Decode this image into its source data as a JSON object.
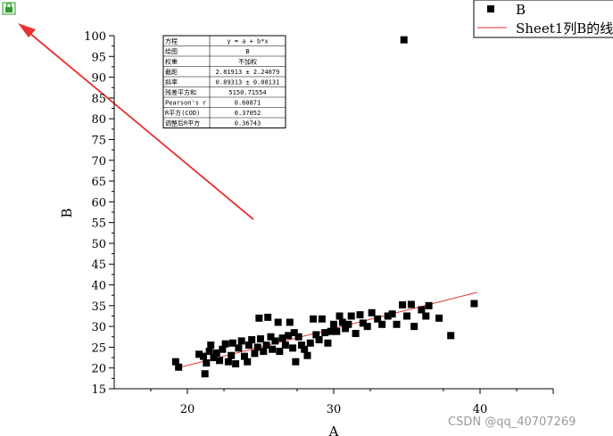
{
  "chart_data": {
    "type": "scatter",
    "xlabel": "A",
    "ylabel": "B",
    "xlim": [
      15,
      45
    ],
    "ylim": [
      15,
      100
    ],
    "x_ticks": [
      20,
      30,
      40
    ],
    "y_ticks": [
      15,
      20,
      25,
      30,
      35,
      40,
      45,
      50,
      55,
      60,
      65,
      70,
      75,
      80,
      85,
      90,
      95,
      100
    ],
    "grid": false,
    "legend": {
      "position": "top-right",
      "entries": [
        {
          "label": "B",
          "marker": "square"
        },
        {
          "label": "Sheet1列B的线",
          "marker": "line"
        }
      ]
    },
    "series": [
      {
        "name": "B",
        "kind": "scatter",
        "color": "#000000",
        "points": [
          [
            19.2,
            21.5
          ],
          [
            19.4,
            20.2
          ],
          [
            20.8,
            23.3
          ],
          [
            21.1,
            22.8
          ],
          [
            21.2,
            18.6
          ],
          [
            21.3,
            21.2
          ],
          [
            21.5,
            24.0
          ],
          [
            21.6,
            25.5
          ],
          [
            21.8,
            22.5
          ],
          [
            22.0,
            23.6
          ],
          [
            22.2,
            21.8
          ],
          [
            22.4,
            24.5
          ],
          [
            22.6,
            25.8
          ],
          [
            22.8,
            21.5
          ],
          [
            23.0,
            23.0
          ],
          [
            23.1,
            26.0
          ],
          [
            23.3,
            21.0
          ],
          [
            23.5,
            24.8
          ],
          [
            23.7,
            26.5
          ],
          [
            23.9,
            22.8
          ],
          [
            24.1,
            21.5
          ],
          [
            24.2,
            25.5
          ],
          [
            24.4,
            26.8
          ],
          [
            24.6,
            23.5
          ],
          [
            24.8,
            25.0
          ],
          [
            24.9,
            32.0
          ],
          [
            25.0,
            27.0
          ],
          [
            25.2,
            24.0
          ],
          [
            25.4,
            25.5
          ],
          [
            25.5,
            32.2
          ],
          [
            25.7,
            27.5
          ],
          [
            25.8,
            24.5
          ],
          [
            26.0,
            26.5
          ],
          [
            26.2,
            31.0
          ],
          [
            26.3,
            24.0
          ],
          [
            26.5,
            27.2
          ],
          [
            26.7,
            25.5
          ],
          [
            26.9,
            27.8
          ],
          [
            27.0,
            31.0
          ],
          [
            27.2,
            24.8
          ],
          [
            27.3,
            28.5
          ],
          [
            27.4,
            21.5
          ],
          [
            27.6,
            27.5
          ],
          [
            27.8,
            25.5
          ],
          [
            28.0,
            24.5
          ],
          [
            28.2,
            23.0
          ],
          [
            28.4,
            26.0
          ],
          [
            28.6,
            31.8
          ],
          [
            28.8,
            28.0
          ],
          [
            29.0,
            26.8
          ],
          [
            29.2,
            31.8
          ],
          [
            29.4,
            28.5
          ],
          [
            29.6,
            26.0
          ],
          [
            29.8,
            28.8
          ],
          [
            30.0,
            30.5
          ],
          [
            30.2,
            28.8
          ],
          [
            30.4,
            32.5
          ],
          [
            30.6,
            31.0
          ],
          [
            30.8,
            29.5
          ],
          [
            31.0,
            30.5
          ],
          [
            31.2,
            32.5
          ],
          [
            31.5,
            28.3
          ],
          [
            31.8,
            32.8
          ],
          [
            32.0,
            30.8
          ],
          [
            32.3,
            30.0
          ],
          [
            32.6,
            33.3
          ],
          [
            33.0,
            31.8
          ],
          [
            33.3,
            30.5
          ],
          [
            33.7,
            32.5
          ],
          [
            34.0,
            33.0
          ],
          [
            34.3,
            30.5
          ],
          [
            34.7,
            35.2
          ],
          [
            34.8,
            99.0
          ],
          [
            35.0,
            32.5
          ],
          [
            35.3,
            35.3
          ],
          [
            35.5,
            30.0
          ],
          [
            36.0,
            34.0
          ],
          [
            36.3,
            32.5
          ],
          [
            36.5,
            35.0
          ],
          [
            37.2,
            32.0
          ],
          [
            38.0,
            27.8
          ],
          [
            39.6,
            35.5
          ]
        ]
      },
      {
        "name": "Sheet1列B的线",
        "kind": "line",
        "color": "#e8312f",
        "points": [
          [
            19.2,
            19.9
          ],
          [
            39.8,
            38.2
          ]
        ]
      }
    ],
    "stats_table": [
      [
        "方程",
        "y = a + b*x"
      ],
      [
        "绘图",
        "B"
      ],
      [
        "权重",
        "不加权"
      ],
      [
        "截距",
        "2.81913 ± 2.24079"
      ],
      [
        "斜率",
        "0.89313 ± 0.08131"
      ],
      [
        "残差平方和",
        "5150.71554"
      ],
      [
        "Pearson's r",
        "0.60871"
      ],
      [
        "R平方(COD)",
        "0.37052"
      ],
      [
        "调整后R平方",
        "0.36743"
      ]
    ]
  },
  "watermark": "CSDN @qq_40707269",
  "annotation_arrow_color": "#e8312f",
  "lock_icon_color": "#2e9b2e"
}
